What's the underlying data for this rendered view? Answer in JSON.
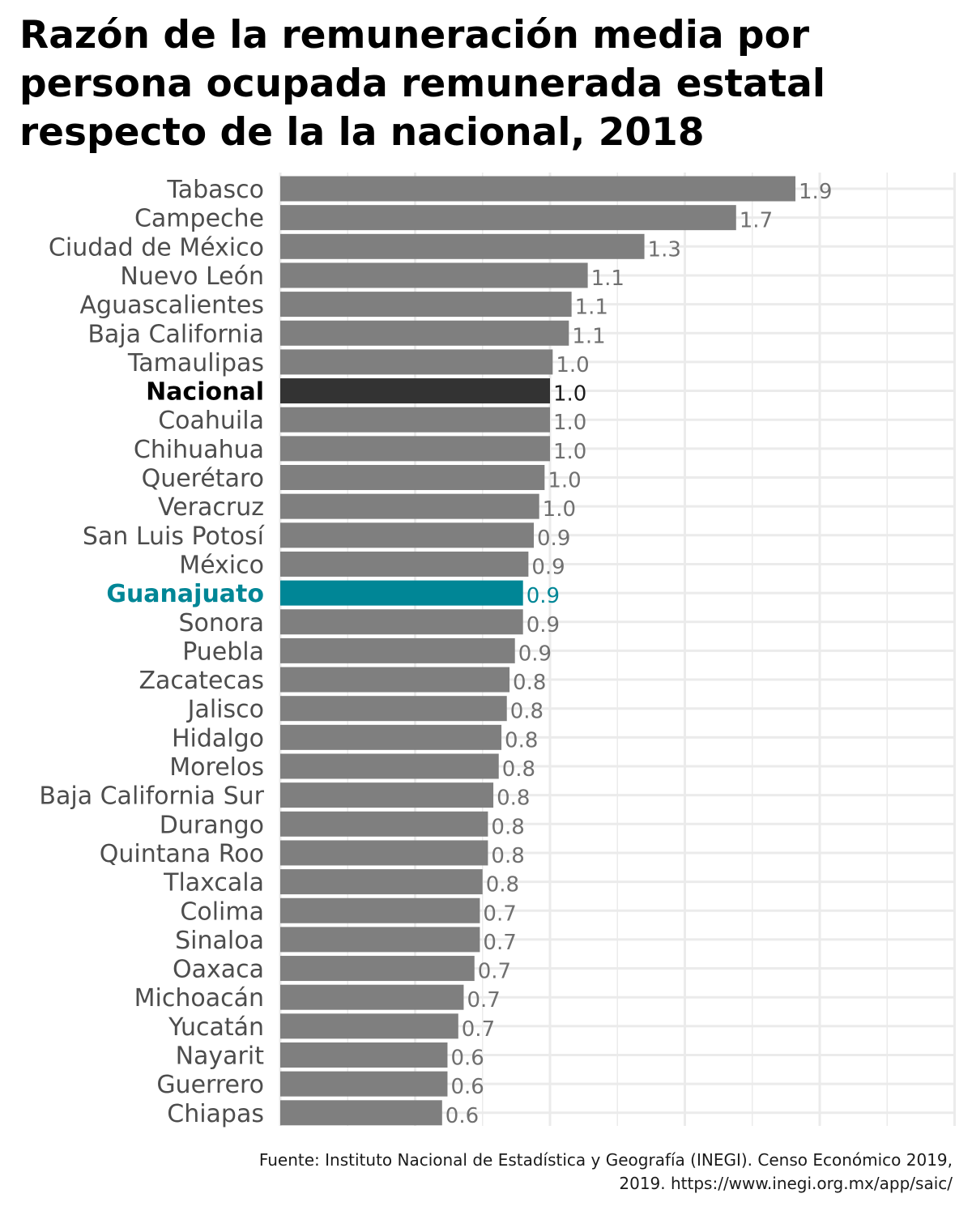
{
  "chart_data": {
    "type": "bar",
    "orientation": "horizontal",
    "title": "Razón de la remuneración media por persona ocupada remunerada estatal respecto de la la nacional, 2018",
    "source": "Fuente: Instituto Nacional de Estadística y Geografía (INEGI). Censo Económico 2019, 2019. https://www.inegi.org.mx/app/saic/",
    "xlim": [
      0,
      2.5
    ],
    "grid": true,
    "colors": {
      "default": "#7f7f7f",
      "national": "#333333",
      "highlight": "#008696",
      "label_default": "#4d4d4d"
    },
    "categories": [
      {
        "name": "Tabasco",
        "value": 1.91,
        "label": "1.9",
        "style": "default"
      },
      {
        "name": "Campeche",
        "value": 1.69,
        "label": "1.7",
        "style": "default"
      },
      {
        "name": "Ciudad de México",
        "value": 1.35,
        "label": "1.3",
        "style": "default"
      },
      {
        "name": "Nuevo León",
        "value": 1.14,
        "label": "1.1",
        "style": "default"
      },
      {
        "name": "Aguascalientes",
        "value": 1.08,
        "label": "1.1",
        "style": "default"
      },
      {
        "name": "Baja California",
        "value": 1.07,
        "label": "1.1",
        "style": "default"
      },
      {
        "name": "Tamaulipas",
        "value": 1.01,
        "label": "1.0",
        "style": "default"
      },
      {
        "name": "Nacional",
        "value": 1.0,
        "label": "1.0",
        "style": "national"
      },
      {
        "name": "Coahuila",
        "value": 1.0,
        "label": "1.0",
        "style": "default"
      },
      {
        "name": "Chihuahua",
        "value": 1.0,
        "label": "1.0",
        "style": "default"
      },
      {
        "name": "Querétaro",
        "value": 0.98,
        "label": "1.0",
        "style": "default"
      },
      {
        "name": "Veracruz",
        "value": 0.96,
        "label": "1.0",
        "style": "default"
      },
      {
        "name": "San Luis Potosí",
        "value": 0.94,
        "label": "0.9",
        "style": "default"
      },
      {
        "name": "México",
        "value": 0.92,
        "label": "0.9",
        "style": "default"
      },
      {
        "name": "Guanajuato",
        "value": 0.9,
        "label": "0.9",
        "style": "highlight"
      },
      {
        "name": "Sonora",
        "value": 0.9,
        "label": "0.9",
        "style": "default"
      },
      {
        "name": "Puebla",
        "value": 0.87,
        "label": "0.9",
        "style": "default"
      },
      {
        "name": "Zacatecas",
        "value": 0.85,
        "label": "0.8",
        "style": "default"
      },
      {
        "name": "Jalisco",
        "value": 0.84,
        "label": "0.8",
        "style": "default"
      },
      {
        "name": "Hidalgo",
        "value": 0.82,
        "label": "0.8",
        "style": "default"
      },
      {
        "name": "Morelos",
        "value": 0.81,
        "label": "0.8",
        "style": "default"
      },
      {
        "name": "Baja California Sur",
        "value": 0.79,
        "label": "0.8",
        "style": "default"
      },
      {
        "name": "Durango",
        "value": 0.77,
        "label": "0.8",
        "style": "default"
      },
      {
        "name": "Quintana Roo",
        "value": 0.77,
        "label": "0.8",
        "style": "default"
      },
      {
        "name": "Tlaxcala",
        "value": 0.75,
        "label": "0.8",
        "style": "default"
      },
      {
        "name": "Colima",
        "value": 0.74,
        "label": "0.7",
        "style": "default"
      },
      {
        "name": "Sinaloa",
        "value": 0.74,
        "label": "0.7",
        "style": "default"
      },
      {
        "name": "Oaxaca",
        "value": 0.72,
        "label": "0.7",
        "style": "default"
      },
      {
        "name": "Michoacán",
        "value": 0.68,
        "label": "0.7",
        "style": "default"
      },
      {
        "name": "Yucatán",
        "value": 0.66,
        "label": "0.7",
        "style": "default"
      },
      {
        "name": "Nayarit",
        "value": 0.62,
        "label": "0.6",
        "style": "default"
      },
      {
        "name": "Guerrero",
        "value": 0.62,
        "label": "0.6",
        "style": "default"
      },
      {
        "name": "Chiapas",
        "value": 0.6,
        "label": "0.6",
        "style": "default"
      }
    ]
  }
}
